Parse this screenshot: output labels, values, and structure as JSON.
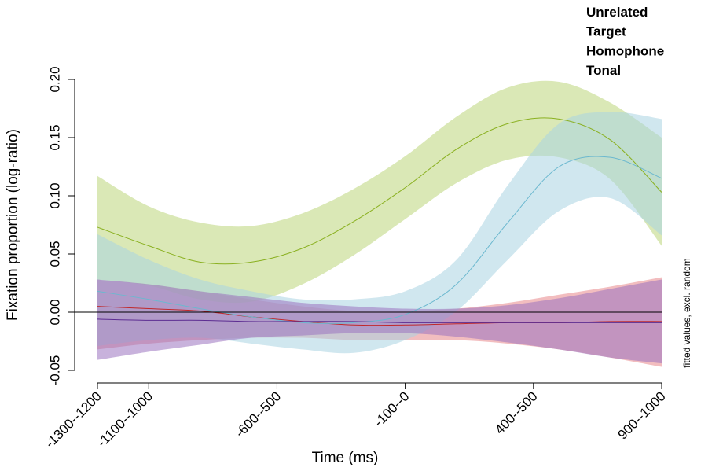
{
  "chart_data": {
    "type": "line",
    "xlabel": "Time (ms)",
    "ylabel": "Fixation proportion (log-ratio)",
    "side_note": "fitted values, excl. random",
    "xlim": [
      -1300,
      900
    ],
    "ylim": [
      -0.05,
      0.2
    ],
    "xticks": [
      {
        "value": -1300,
        "label": "-1300--1200"
      },
      {
        "value": -1100,
        "label": "-1100--1000"
      },
      {
        "value": -600,
        "label": "-600--500"
      },
      {
        "value": -100,
        "label": "-100--0"
      },
      {
        "value": 400,
        "label": "400--500"
      },
      {
        "value": 900,
        "label": "900--1000"
      }
    ],
    "yticks": [
      {
        "value": -0.05,
        "label": "-0.05"
      },
      {
        "value": 0,
        "label": "0.00"
      },
      {
        "value": 0.05,
        "label": "0.05"
      },
      {
        "value": 0.1,
        "label": "0.10"
      },
      {
        "value": 0.15,
        "label": "0.15"
      },
      {
        "value": 0.2,
        "label": "0.20"
      }
    ],
    "x": [
      -1300,
      -1100,
      -900,
      -700,
      -500,
      -300,
      -100,
      100,
      300,
      500,
      700,
      900
    ],
    "series": [
      {
        "name": "Unrelated",
        "color": "#c0282a",
        "band_color": "#e8868a",
        "values": [
          0.005,
          0.003,
          0.001,
          -0.004,
          -0.008,
          -0.011,
          -0.011,
          -0.01,
          -0.009,
          -0.009,
          -0.008,
          -0.008
        ],
        "upper": [
          0.028,
          0.024,
          0.018,
          0.011,
          0.005,
          0.001,
          0.001,
          0.003,
          0.008,
          0.015,
          0.022,
          0.03
        ],
        "lower": [
          -0.032,
          -0.027,
          -0.024,
          -0.022,
          -0.022,
          -0.024,
          -0.024,
          -0.024,
          -0.027,
          -0.032,
          -0.039,
          -0.047
        ]
      },
      {
        "name": "Target",
        "color": "#8ab020",
        "band_color": "#bcd67a",
        "values": [
          0.073,
          0.057,
          0.043,
          0.043,
          0.055,
          0.078,
          0.107,
          0.14,
          0.162,
          0.166,
          0.148,
          0.103
        ],
        "upper": [
          0.117,
          0.091,
          0.077,
          0.074,
          0.085,
          0.106,
          0.134,
          0.168,
          0.193,
          0.198,
          0.18,
          0.15
        ],
        "lower": [
          0.028,
          0.023,
          0.011,
          0.009,
          0.024,
          0.049,
          0.08,
          0.111,
          0.131,
          0.133,
          0.114,
          0.057
        ]
      },
      {
        "name": "Homophone",
        "color": "#6bb8cf",
        "band_color": "#a9d4e2",
        "values": [
          0.018,
          0.011,
          0.003,
          -0.004,
          -0.009,
          -0.009,
          -0.002,
          0.024,
          0.077,
          0.125,
          0.133,
          0.115
        ],
        "upper": [
          0.067,
          0.045,
          0.028,
          0.018,
          0.011,
          0.011,
          0.018,
          0.045,
          0.109,
          0.162,
          0.172,
          0.166
        ],
        "lower": [
          -0.029,
          -0.024,
          -0.022,
          -0.027,
          -0.032,
          -0.035,
          -0.024,
          0.001,
          0.045,
          0.087,
          0.098,
          0.066
        ]
      },
      {
        "name": "Tonal",
        "color": "#5c2d91",
        "band_color": "#9a72bf",
        "values": [
          -0.006,
          -0.007,
          -0.007,
          -0.008,
          -0.008,
          -0.008,
          -0.009,
          -0.009,
          -0.009,
          -0.009,
          -0.009,
          -0.009
        ],
        "upper": [
          0.028,
          0.024,
          0.018,
          0.013,
          0.008,
          0.005,
          0.003,
          0.003,
          0.006,
          0.012,
          0.02,
          0.028
        ],
        "lower": [
          -0.041,
          -0.034,
          -0.028,
          -0.022,
          -0.02,
          -0.018,
          -0.018,
          -0.021,
          -0.026,
          -0.032,
          -0.039,
          -0.044
        ]
      }
    ]
  }
}
